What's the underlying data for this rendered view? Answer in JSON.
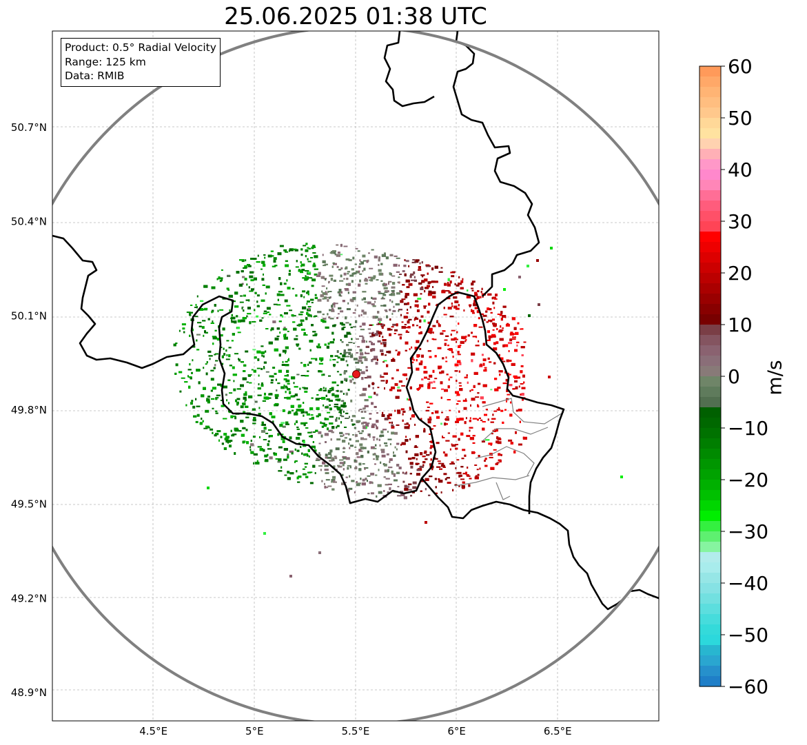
{
  "title": "25.06.2025 01:38 UTC",
  "info_box": {
    "line1": "Product: 0.5° Radial Velocity",
    "line2": "Range: 125 km",
    "line3": "Data: RMIB"
  },
  "map": {
    "lon_range": [
      4.0,
      7.0
    ],
    "lat_range": [
      48.8,
      50.99
    ],
    "radar_site": {
      "lon": 5.505,
      "lat": 49.914
    },
    "range_ring_km": 125,
    "gridlines": "dashed, light gray",
    "lon_ticks": [
      {
        "value": 4.5,
        "label": "4.5°E"
      },
      {
        "value": 5.0,
        "label": "5°E"
      },
      {
        "value": 5.5,
        "label": "5.5°E"
      },
      {
        "value": 6.0,
        "label": "6°E"
      },
      {
        "value": 6.5,
        "label": "6.5°E"
      }
    ],
    "lat_ticks": [
      {
        "value": 50.7,
        "label": "50.7°N"
      },
      {
        "value": 50.4,
        "label": "50.4°N"
      },
      {
        "value": 50.1,
        "label": "50.1°N"
      },
      {
        "value": 49.8,
        "label": "49.8°N"
      },
      {
        "value": 49.5,
        "label": "49.5°N"
      },
      {
        "value": 49.2,
        "label": "49.2°N"
      },
      {
        "value": 48.9,
        "label": "48.9°N"
      }
    ],
    "colors": {
      "border": "#000000",
      "province_border": "#808080",
      "range_ring": "#808080",
      "radar_marker": "#e8191b"
    }
  },
  "colorbar": {
    "unit": "m/s",
    "min": -60,
    "max": 60,
    "ticks": [
      {
        "value": 60,
        "label": "60"
      },
      {
        "value": 50,
        "label": "50"
      },
      {
        "value": 40,
        "label": "40"
      },
      {
        "value": 30,
        "label": "30"
      },
      {
        "value": 20,
        "label": "20"
      },
      {
        "value": 10,
        "label": "10"
      },
      {
        "value": 0,
        "label": "0"
      },
      {
        "value": -10,
        "label": "−10"
      },
      {
        "value": -20,
        "label": "−20"
      },
      {
        "value": -30,
        "label": "−30"
      },
      {
        "value": -40,
        "label": "−40"
      },
      {
        "value": -50,
        "label": "−50"
      },
      {
        "value": -60,
        "label": "−60"
      }
    ],
    "bands": [
      {
        "from": 58,
        "to": 60,
        "color": "#ff9a5a"
      },
      {
        "from": 56,
        "to": 58,
        "color": "#ffa868"
      },
      {
        "from": 54,
        "to": 56,
        "color": "#ffb474"
      },
      {
        "from": 52,
        "to": 54,
        "color": "#ffbe80"
      },
      {
        "from": 50,
        "to": 52,
        "color": "#ffc88c"
      },
      {
        "from": 48,
        "to": 50,
        "color": "#ffd898"
      },
      {
        "from": 46,
        "to": 48,
        "color": "#ffe2a0"
      },
      {
        "from": 44,
        "to": 46,
        "color": "#ffd2b0"
      },
      {
        "from": 42,
        "to": 44,
        "color": "#ffb0b6"
      },
      {
        "from": 40,
        "to": 42,
        "color": "#ff98c8"
      },
      {
        "from": 38,
        "to": 40,
        "color": "#ff88cc"
      },
      {
        "from": 36,
        "to": 38,
        "color": "#ff86b8"
      },
      {
        "from": 34,
        "to": 36,
        "color": "#ff6e96"
      },
      {
        "from": 32,
        "to": 34,
        "color": "#ff5c7c"
      },
      {
        "from": 30,
        "to": 32,
        "color": "#ff5068"
      },
      {
        "from": 28,
        "to": 30,
        "color": "#ff4456"
      },
      {
        "from": 26,
        "to": 28,
        "color": "#ff0000"
      },
      {
        "from": 24,
        "to": 26,
        "color": "#ee0000"
      },
      {
        "from": 22,
        "to": 24,
        "color": "#dd0000"
      },
      {
        "from": 20,
        "to": 22,
        "color": "#cc0000"
      },
      {
        "from": 18,
        "to": 20,
        "color": "#bb0000"
      },
      {
        "from": 16,
        "to": 18,
        "color": "#aa0000"
      },
      {
        "from": 14,
        "to": 16,
        "color": "#990000"
      },
      {
        "from": 12,
        "to": 14,
        "color": "#880000"
      },
      {
        "from": 10,
        "to": 12,
        "color": "#780000"
      },
      {
        "from": 8,
        "to": 10,
        "color": "#7a3e46"
      },
      {
        "from": 6,
        "to": 8,
        "color": "#845460"
      },
      {
        "from": 4,
        "to": 6,
        "color": "#8a6270"
      },
      {
        "from": 2,
        "to": 4,
        "color": "#8a6e78"
      },
      {
        "from": 0,
        "to": 2,
        "color": "#887a78"
      },
      {
        "from": -2,
        "to": 0,
        "color": "#6f8568"
      },
      {
        "from": -4,
        "to": -2,
        "color": "#5f7b5c"
      },
      {
        "from": -6,
        "to": -4,
        "color": "#526f50"
      },
      {
        "from": -8,
        "to": -6,
        "color": "#006000"
      },
      {
        "from": -10,
        "to": -8,
        "color": "#006800"
      },
      {
        "from": -12,
        "to": -10,
        "color": "#007200"
      },
      {
        "from": -14,
        "to": -12,
        "color": "#007e00"
      },
      {
        "from": -16,
        "to": -14,
        "color": "#008a00"
      },
      {
        "from": -18,
        "to": -16,
        "color": "#009600"
      },
      {
        "from": -20,
        "to": -18,
        "color": "#00a200"
      },
      {
        "from": -22,
        "to": -20,
        "color": "#00b000"
      },
      {
        "from": -24,
        "to": -22,
        "color": "#00c000"
      },
      {
        "from": -26,
        "to": -24,
        "color": "#00d600"
      },
      {
        "from": -28,
        "to": -26,
        "color": "#00ee00"
      },
      {
        "from": -30,
        "to": -28,
        "color": "#34f040"
      },
      {
        "from": -32,
        "to": -30,
        "color": "#5ef070"
      },
      {
        "from": -34,
        "to": -32,
        "color": "#86f4a0"
      },
      {
        "from": -36,
        "to": -34,
        "color": "#b2ecec"
      },
      {
        "from": -38,
        "to": -36,
        "color": "#a8ecec"
      },
      {
        "from": -40,
        "to": -38,
        "color": "#96e6e6"
      },
      {
        "from": -42,
        "to": -40,
        "color": "#86e2e4"
      },
      {
        "from": -44,
        "to": -42,
        "color": "#72e0e0"
      },
      {
        "from": -46,
        "to": -44,
        "color": "#5cdede"
      },
      {
        "from": -48,
        "to": -46,
        "color": "#46dcdc"
      },
      {
        "from": -50,
        "to": -48,
        "color": "#34dada"
      },
      {
        "from": -52,
        "to": -50,
        "color": "#2cd8dc"
      },
      {
        "from": -54,
        "to": -52,
        "color": "#28b6d0"
      },
      {
        "from": -56,
        "to": -54,
        "color": "#2aa6d0"
      },
      {
        "from": -58,
        "to": -56,
        "color": "#2690cc"
      },
      {
        "from": -60,
        "to": -58,
        "color": "#1f7fc8"
      }
    ]
  }
}
